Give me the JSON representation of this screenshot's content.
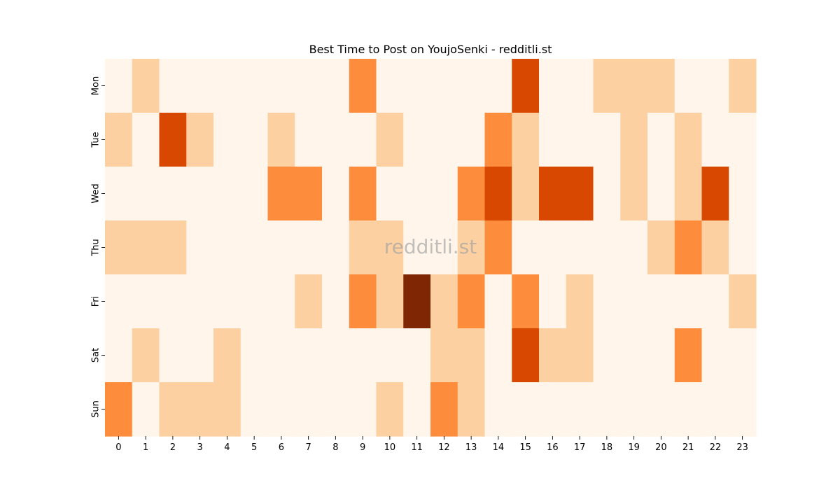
{
  "chart_data": {
    "type": "heatmap",
    "title": "Best Time to Post on YoujoSenki - redditli.st",
    "watermark": "redditli.st",
    "xlabel": "",
    "ylabel": "",
    "x_categories": [
      "0",
      "1",
      "2",
      "3",
      "4",
      "5",
      "6",
      "7",
      "8",
      "9",
      "10",
      "11",
      "12",
      "13",
      "14",
      "15",
      "16",
      "17",
      "18",
      "19",
      "20",
      "21",
      "22",
      "23"
    ],
    "y_categories": [
      "Mon",
      "Tue",
      "Wed",
      "Thu",
      "Fri",
      "Sat",
      "Sun"
    ],
    "levels": [
      [
        0,
        1,
        0,
        0,
        0,
        0,
        0,
        0,
        0,
        2,
        0,
        0,
        0,
        0,
        0,
        3,
        0,
        0,
        1,
        1,
        1,
        0,
        0,
        1
      ],
      [
        1,
        0,
        3,
        1,
        0,
        0,
        1,
        0,
        0,
        0,
        1,
        0,
        0,
        0,
        2,
        1,
        0,
        0,
        0,
        1,
        0,
        1,
        0,
        0
      ],
      [
        0,
        0,
        0,
        0,
        0,
        0,
        2,
        2,
        0,
        2,
        0,
        0,
        0,
        2,
        3,
        1,
        3,
        3,
        0,
        1,
        0,
        1,
        3,
        0
      ],
      [
        1,
        1,
        1,
        0,
        0,
        0,
        0,
        0,
        0,
        1,
        1,
        0,
        0,
        1,
        2,
        0,
        0,
        0,
        0,
        0,
        1,
        2,
        1,
        0
      ],
      [
        0,
        0,
        0,
        0,
        0,
        0,
        0,
        1,
        0,
        2,
        1,
        4,
        1,
        2,
        0,
        2,
        0,
        1,
        0,
        0,
        0,
        0,
        0,
        1
      ],
      [
        0,
        1,
        0,
        0,
        1,
        0,
        0,
        0,
        0,
        0,
        0,
        0,
        1,
        1,
        0,
        3,
        1,
        1,
        0,
        0,
        0,
        2,
        0,
        0
      ],
      [
        2,
        0,
        1,
        1,
        1,
        0,
        0,
        0,
        0,
        0,
        1,
        0,
        2,
        1,
        0,
        0,
        0,
        0,
        0,
        0,
        0,
        0,
        0,
        0
      ]
    ],
    "colorscale": [
      "#fff5eb",
      "#fdd0a2",
      "#fd8d3c",
      "#d94801",
      "#7f2704"
    ],
    "colorbar": false,
    "grid": false
  }
}
